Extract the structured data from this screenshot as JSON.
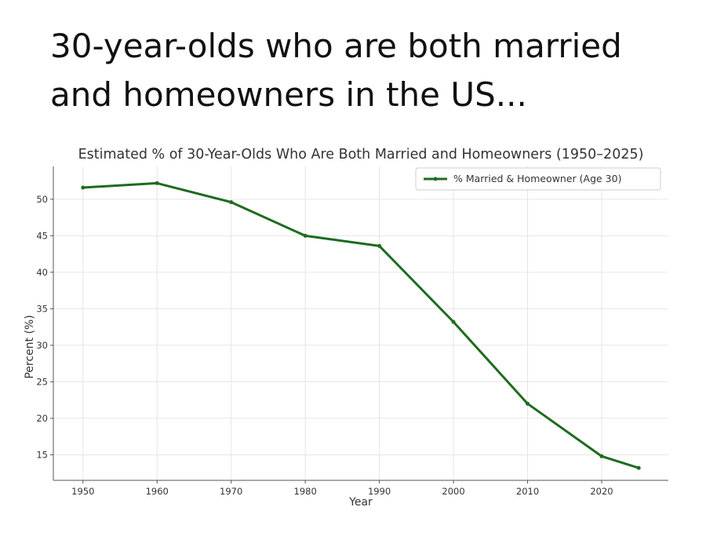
{
  "headline": {
    "line1": "30-year-olds who are both married",
    "line2": "and homeowners in the US..."
  },
  "chart_data": {
    "type": "line",
    "title": "Estimated % of 30-Year-Olds Who Are Both Married and Homeowners (1950–2025)",
    "xlabel": "Year",
    "ylabel": "Percent (%)",
    "x": [
      1950,
      1960,
      1970,
      1980,
      1990,
      2000,
      2010,
      2020,
      2025
    ],
    "series": [
      {
        "name": "% Married & Homeowner (Age 30)",
        "values": [
          51.6,
          52.2,
          49.6,
          45.0,
          43.6,
          33.2,
          22.0,
          14.8,
          13.2
        ],
        "color": "#1e6b1e"
      }
    ],
    "xticks": [
      1950,
      1960,
      1970,
      1980,
      1990,
      2000,
      2010,
      2020
    ],
    "yticks": [
      15,
      20,
      25,
      30,
      35,
      40,
      45,
      50
    ],
    "xlim": [
      1946,
      2029
    ],
    "ylim": [
      11.5,
      54.5
    ],
    "grid": true,
    "legend_position": "top-right"
  }
}
